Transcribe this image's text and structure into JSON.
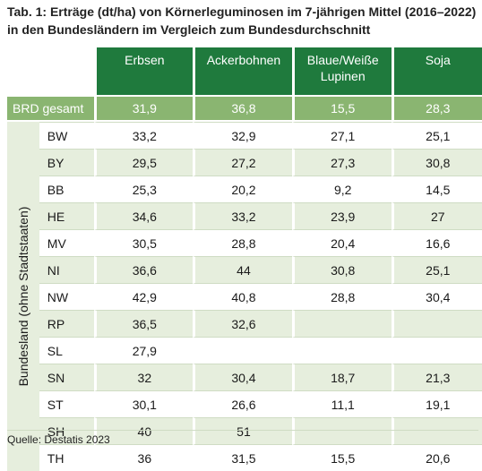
{
  "title": "Tab. 1: Erträge (dt/ha) von Körnerleguminosen im 7-jährigen Mittel (2016–2022) in den Bundesländern im Vergleich zum Bundesdurchschnitt",
  "side_label": "Bundesland (ohne Stadtstaaten)",
  "source": "Quelle: Destatis 2023",
  "colors": {
    "header_green": "#1f7a3d",
    "brd_green": "#8ab571",
    "row_tint": "#e6eedd"
  },
  "chart_data": {
    "type": "table",
    "columns": [
      "Erbsen",
      "Ackerbohnen",
      "Blaue/Weiße Lupinen",
      "Soja"
    ],
    "total_row": {
      "label": "BRD gesamt",
      "values": [
        "31,9",
        "36,8",
        "15,5",
        "28,3"
      ]
    },
    "rows": [
      {
        "label": "BW",
        "values": [
          "33,2",
          "32,9",
          "27,1",
          "25,1"
        ]
      },
      {
        "label": "BY",
        "values": [
          "29,5",
          "27,2",
          "27,3",
          "30,8"
        ]
      },
      {
        "label": "BB",
        "values": [
          "25,3",
          "20,2",
          "9,2",
          "14,5"
        ]
      },
      {
        "label": "HE",
        "values": [
          "34,6",
          "33,2",
          "23,9",
          "27"
        ]
      },
      {
        "label": "MV",
        "values": [
          "30,5",
          "28,8",
          "20,4",
          "16,6"
        ]
      },
      {
        "label": "NI",
        "values": [
          "36,6",
          "44",
          "30,8",
          "25,1"
        ]
      },
      {
        "label": "NW",
        "values": [
          "42,9",
          "40,8",
          "28,8",
          "30,4"
        ]
      },
      {
        "label": "RP",
        "values": [
          "36,5",
          "32,6",
          "",
          ""
        ]
      },
      {
        "label": "SL",
        "values": [
          "27,9",
          "",
          "",
          ""
        ]
      },
      {
        "label": "SN",
        "values": [
          "32",
          "30,4",
          "18,7",
          "21,3"
        ]
      },
      {
        "label": "ST",
        "values": [
          "30,1",
          "26,6",
          "11,1",
          "19,1"
        ]
      },
      {
        "label": "SH",
        "values": [
          "40",
          "51",
          "",
          ""
        ]
      },
      {
        "label": "TH",
        "values": [
          "36",
          "31,5",
          "15,5",
          "20,6"
        ]
      }
    ]
  }
}
